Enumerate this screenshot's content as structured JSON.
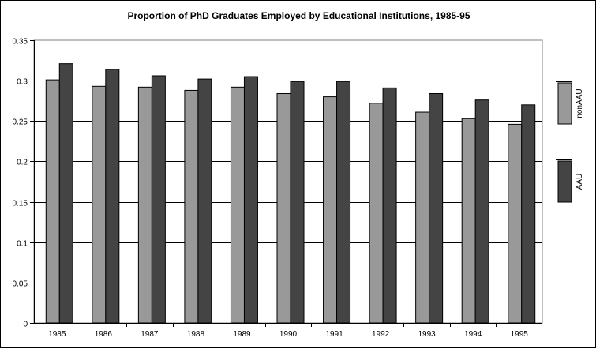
{
  "chart_data": {
    "type": "bar",
    "title": "Proportion of PhD Graduates Employed by Educational Institutions, 1985-95",
    "xlabel": "",
    "ylabel": "",
    "categories": [
      "1985",
      "1986",
      "1987",
      "1988",
      "1989",
      "1990",
      "1991",
      "1992",
      "1993",
      "1994",
      "1995"
    ],
    "series": [
      {
        "name": "nonAAU",
        "color": "#999999",
        "values": [
          0.301,
          0.293,
          0.292,
          0.288,
          0.292,
          0.284,
          0.28,
          0.272,
          0.261,
          0.253,
          0.246
        ]
      },
      {
        "name": "AAU",
        "color": "#444444",
        "values": [
          0.321,
          0.314,
          0.306,
          0.302,
          0.305,
          0.299,
          0.299,
          0.291,
          0.284,
          0.276,
          0.27
        ]
      }
    ],
    "ylim": [
      0,
      0.35
    ],
    "yticks": [
      "0",
      "0.05",
      "0.1",
      "0.15",
      "0.2",
      "0.25",
      "0.3",
      "0.35"
    ],
    "grid": true,
    "legend_position": "right"
  }
}
